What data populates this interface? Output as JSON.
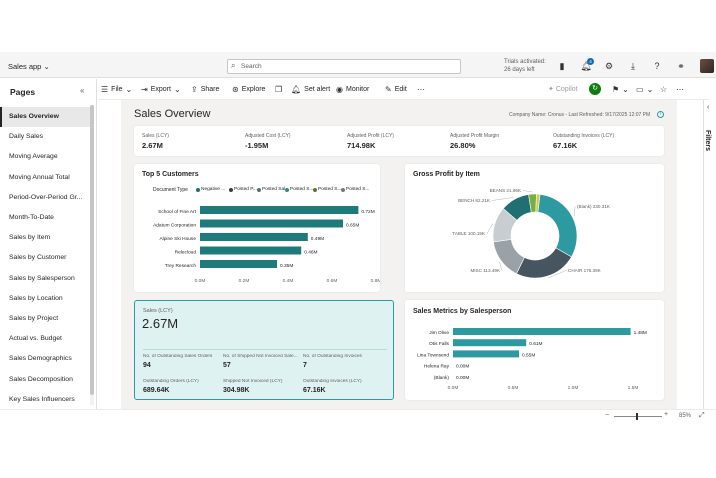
{
  "app": {
    "name": "Sales app",
    "search_placeholder": "Search",
    "trial_line1": "Trials activated:",
    "trial_line2": "26 days left",
    "notification_count": "4"
  },
  "pages": {
    "title": "Pages",
    "items": [
      "Sales Overview",
      "Daily Sales",
      "Moving Average",
      "Moving Annual Total",
      "Period-Over-Period Gr...",
      "Month-To-Date",
      "Sales by Item",
      "Sales by Customer",
      "Sales by Salesperson",
      "Sales by Location",
      "Sales by Project",
      "Actual vs. Budget",
      "Sales Demographics",
      "Sales Decomposition",
      "Key Sales Influencers"
    ]
  },
  "toolbar": {
    "file": "File",
    "export": "Export",
    "share": "Share",
    "explore": "Explore",
    "set_alert": "Set alert",
    "monitor": "Monitor",
    "edit": "Edit",
    "copilot": "Copilot"
  },
  "report": {
    "title": "Sales Overview",
    "meta": "Company Name: Cronus - Last Refreshed: 9/17/2025 12:07 PM",
    "kpis": [
      {
        "label": "Sales (LCY)",
        "value": "2.67M"
      },
      {
        "label": "Adjusted Cost (LCY)",
        "value": "-1.95M"
      },
      {
        "label": "Adjusted Profit (LCY)",
        "value": "714.98K"
      },
      {
        "label": "Adjusted Profit Margin",
        "value": "26.80%"
      },
      {
        "label": "Outstanding Invoices (LCY)",
        "value": "67.16K"
      }
    ],
    "top5": {
      "title": "Top 5 Customers",
      "legend_title": "Document Type",
      "legend": [
        "Negative ...",
        "Posted P...",
        "Posted Sal...",
        "Posted S...",
        "Posted S...",
        "Posted S..."
      ],
      "legend_colors": [
        "#1f6f73",
        "#3c3c3c",
        "#5b6b78",
        "#2a8c8c",
        "#4a7a3a",
        "#777777"
      ]
    },
    "gross": {
      "title": "Gross Profit by Item"
    },
    "sales_card": {
      "label": "Sales (LCY)",
      "value": "2.67M",
      "stats": [
        {
          "label": "No. of Outstanding Sales Orders",
          "value": "94"
        },
        {
          "label": "No. of Shipped Not Invoiced Sale...",
          "value": "57"
        },
        {
          "label": "No. of Outstanding Invoices",
          "value": "7"
        },
        {
          "label": "Outstanding Orders (LCY)",
          "value": "689.64K"
        },
        {
          "label": "Shipped Not Invoiced (LCY)",
          "value": "304.98K"
        },
        {
          "label": "Outstanding Invoices (LCY)",
          "value": "67.16K"
        }
      ]
    },
    "salesperson": {
      "title": "Sales Metrics by Salesperson"
    }
  },
  "filters_label": "Filters",
  "zoom": "85%",
  "chart_data": [
    {
      "type": "bar",
      "orientation": "horizontal",
      "title": "Top 5 Customers",
      "categories": [
        "School of Fine Art",
        "Adatum Corporation",
        "Alpine Ski House",
        "Relecloud",
        "Trey Research"
      ],
      "values": [
        0.72,
        0.65,
        0.49,
        0.46,
        0.35
      ],
      "labels": [
        "0.72M",
        "0.65M",
        "0.49M",
        "0.46M",
        "0.35M"
      ],
      "xticks": [
        "0.0M",
        "0.2M",
        "0.4M",
        "0.6M",
        "0.8M"
      ],
      "xlim": [
        0,
        0.8
      ],
      "color": "#1f7a7a"
    },
    {
      "type": "pie",
      "donut": true,
      "title": "Gross Profit by Item",
      "categories": [
        "(Blank)",
        "CHAIR",
        "MISC",
        "TABLE",
        "BENCH",
        "BEANS",
        "Other"
      ],
      "values": [
        230.31,
        176.39,
        113.49,
        100.15,
        82.21,
        21.96,
        10
      ],
      "labels": [
        "(Blank) 230.31K",
        "CHAIR 176.39K",
        "MISC 113.49K",
        "TABLE 100.15K",
        "BENCH 82.21K",
        "BEANS 21.96K"
      ],
      "colors": [
        "#2c9aa0",
        "#46555f",
        "#9aa2a8",
        "#c7cdd1",
        "#1f6f73",
        "#76b041",
        "#d6c64a"
      ]
    },
    {
      "type": "bar",
      "orientation": "horizontal",
      "title": "Sales Metrics by Salesperson",
      "categories": [
        "Jim Olive",
        "Otis Falls",
        "Lina Townsend",
        "Helena Ray",
        "(Blank)"
      ],
      "values": [
        1.48,
        0.61,
        0.55,
        0,
        0
      ],
      "labels": [
        "1.48M",
        "0.61M",
        "0.55M",
        "0.00M",
        "0.00M"
      ],
      "xticks": [
        "0.0M",
        "0.5M",
        "1.0M",
        "1.5M"
      ],
      "xlim": [
        0,
        1.5
      ],
      "color": "#2c9aa0"
    }
  ]
}
